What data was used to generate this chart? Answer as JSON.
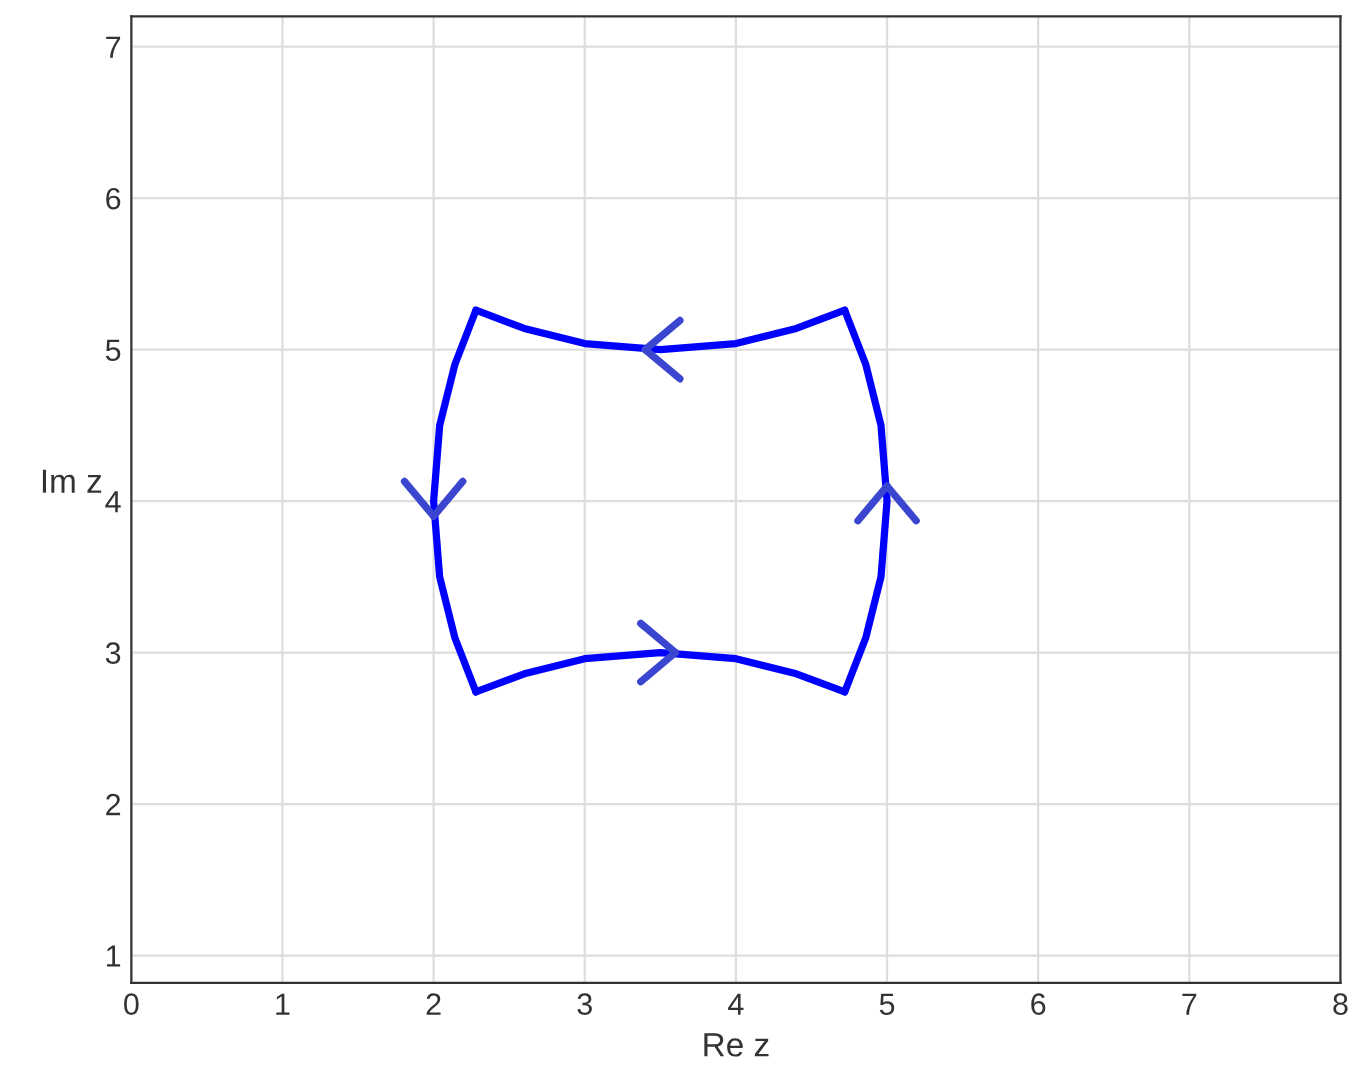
{
  "chart_data": {
    "type": "line",
    "xlabel": "Re z",
    "ylabel": "Im z",
    "xlim": [
      0,
      8
    ],
    "ylim": [
      0.82,
      7.2
    ],
    "xticks": [
      0,
      1,
      2,
      3,
      4,
      5,
      6,
      7,
      8
    ],
    "yticks": [
      1,
      2,
      3,
      4,
      5,
      6,
      7
    ],
    "grid": true,
    "series": [
      {
        "color": "#0000ff",
        "x": [
          2.28,
          2.6,
          3.0,
          3.5,
          4.0,
          4.4,
          4.72
        ],
        "values": [
          2.74,
          2.86,
          2.96,
          3.0,
          2.96,
          2.86,
          2.74
        ]
      },
      {
        "color": "#0000ff",
        "x": [
          4.72,
          4.86,
          4.96,
          5.0,
          4.96,
          4.86,
          4.72
        ],
        "values": [
          2.74,
          3.1,
          3.5,
          4.0,
          4.5,
          4.9,
          5.26
        ]
      },
      {
        "color": "#0000ff",
        "x": [
          4.72,
          4.4,
          4.0,
          3.5,
          3.0,
          2.6,
          2.28
        ],
        "values": [
          5.26,
          5.14,
          5.04,
          5.0,
          5.04,
          5.14,
          5.26
        ]
      },
      {
        "color": "#0000ff",
        "x": [
          2.28,
          2.14,
          2.04,
          2.0,
          2.04,
          2.14,
          2.28
        ],
        "values": [
          5.26,
          4.9,
          4.5,
          4.0,
          3.5,
          3.1,
          2.74
        ]
      }
    ]
  }
}
